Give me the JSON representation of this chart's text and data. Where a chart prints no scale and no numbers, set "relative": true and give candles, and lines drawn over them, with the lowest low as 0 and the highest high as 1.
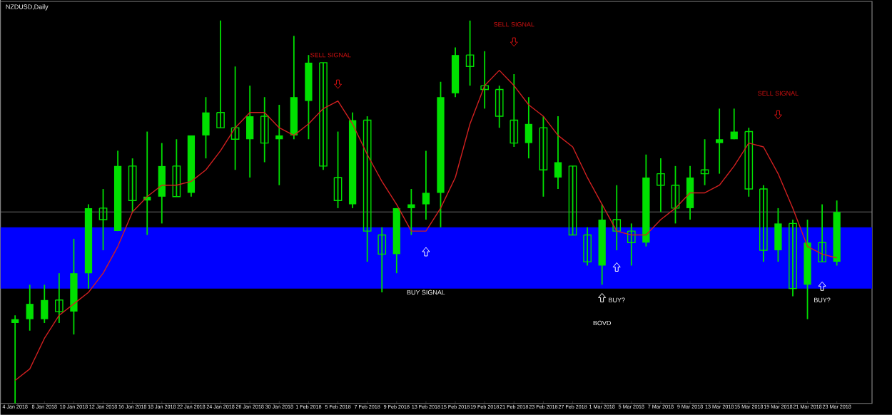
{
  "chart_data": {
    "type": "candlestick",
    "title": "NZDUSD,Daily",
    "relative": true,
    "color": "#00e000",
    "categories": [
      "4 Jan 2018",
      null,
      "8 Jan 2018",
      null,
      "10 Jan 2018",
      null,
      "12 Jan 2018",
      null,
      "16 Jan 2018",
      null,
      "18 Jan 2018",
      null,
      "22 Jan 2018",
      null,
      "24 Jan 2018",
      null,
      "26 Jan 2018",
      null,
      "30 Jan 2018",
      null,
      "1 Feb 2018",
      null,
      "5 Feb 2018",
      null,
      "7 Feb 2018",
      null,
      "9 Feb 2018",
      null,
      "13 Feb 2018",
      null,
      "15 Feb 2018",
      null,
      "19 Feb 2018",
      null,
      "21 Feb 2018",
      null,
      "23 Feb 2018",
      null,
      "27 Feb 2018",
      null,
      "1 Mar 2018",
      null,
      "5 Mar 2018",
      null,
      "7 Mar 2018",
      null,
      "9 Mar 2018",
      null,
      "13 Mar 2018",
      null,
      "15 Mar 2018",
      null,
      "19 Mar 2018",
      null,
      "21 Mar 2018",
      null,
      "23 Mar 2018"
    ],
    "ohlc": [
      [
        0.21,
        0.23,
        0,
        0.22
      ],
      [
        0.22,
        0.31,
        0.19,
        0.26
      ],
      [
        0.22,
        0.31,
        0.21,
        0.27
      ],
      [
        0.27,
        0.34,
        0.21,
        0.24
      ],
      [
        0.24,
        0.43,
        0.18,
        0.34
      ],
      [
        0.34,
        0.52,
        0.3,
        0.51
      ],
      [
        0.51,
        0.56,
        0.4,
        0.48
      ],
      [
        0.45,
        0.66,
        0.45,
        0.62
      ],
      [
        0.62,
        0.64,
        0.5,
        0.53
      ],
      [
        0.53,
        0.71,
        0.44,
        0.54
      ],
      [
        0.54,
        0.68,
        0.47,
        0.62
      ],
      [
        0.62,
        0.69,
        0.54,
        0.54
      ],
      [
        0.55,
        0.7,
        0.54,
        0.7
      ],
      [
        0.7,
        0.8,
        0.64,
        0.76
      ],
      [
        0.76,
        1.0,
        0.72,
        0.72
      ],
      [
        0.72,
        0.88,
        0.61,
        0.69
      ],
      [
        0.69,
        0.83,
        0.59,
        0.75
      ],
      [
        0.75,
        0.8,
        0.63,
        0.68
      ],
      [
        0.69,
        0.78,
        0.57,
        0.7
      ],
      [
        0.7,
        0.96,
        0.69,
        0.8
      ],
      [
        0.79,
        0.91,
        0.69,
        0.89
      ],
      [
        0.89,
        0.89,
        0.61,
        0.62
      ],
      [
        0.59,
        0.71,
        0.51,
        0.53
      ],
      [
        0.52,
        0.76,
        0.51,
        0.74
      ],
      [
        0.74,
        0.75,
        0.37,
        0.45
      ],
      [
        0.44,
        0.46,
        0.29,
        0.39
      ],
      [
        0.39,
        0.51,
        0.34,
        0.51
      ],
      [
        0.51,
        0.56,
        0.44,
        0.52
      ],
      [
        0.52,
        0.66,
        0.48,
        0.55
      ],
      [
        0.55,
        0.84,
        0.46,
        0.8
      ],
      [
        0.81,
        0.93,
        0.8,
        0.91
      ],
      [
        0.91,
        1.0,
        0.83,
        0.88
      ],
      [
        0.83,
        0.92,
        0.77,
        0.82
      ],
      [
        0.82,
        0.83,
        0.72,
        0.75
      ],
      [
        0.74,
        0.86,
        0.67,
        0.68
      ],
      [
        0.68,
        0.8,
        0.64,
        0.73
      ],
      [
        0.72,
        0.75,
        0.54,
        0.61
      ],
      [
        0.59,
        0.75,
        0.56,
        0.63
      ],
      [
        0.62,
        0.62,
        0.44,
        0.44
      ],
      [
        0.44,
        0.46,
        0.36,
        0.37
      ],
      [
        0.36,
        0.52,
        0.31,
        0.48
      ],
      [
        0.48,
        0.57,
        0.4,
        0.45
      ],
      [
        0.45,
        0.47,
        0.36,
        0.42
      ],
      [
        0.42,
        0.65,
        0.41,
        0.59
      ],
      [
        0.6,
        0.64,
        0.5,
        0.57
      ],
      [
        0.57,
        0.62,
        0.47,
        0.51
      ],
      [
        0.51,
        0.62,
        0.48,
        0.59
      ],
      [
        0.61,
        0.69,
        0.57,
        0.6
      ],
      [
        0.68,
        0.77,
        0.6,
        0.69
      ],
      [
        0.69,
        0.77,
        0.69,
        0.71
      ],
      [
        0.71,
        0.72,
        0.54,
        0.56
      ],
      [
        0.56,
        0.57,
        0.37,
        0.4
      ],
      [
        0.4,
        0.51,
        0.37,
        0.47
      ],
      [
        0.47,
        0.48,
        0.28,
        0.3
      ],
      [
        0.31,
        0.48,
        0.22,
        0.42
      ],
      [
        0.42,
        0.52,
        0.37,
        0.37
      ],
      [
        0.37,
        0.53,
        0.36,
        0.5
      ]
    ],
    "series": [
      {
        "type": "line",
        "color": "#d02020",
        "values": [
          0.06,
          0.09,
          0.17,
          0.23,
          0.26,
          0.29,
          0.34,
          0.41,
          0.5,
          0.54,
          0.57,
          0.57,
          0.58,
          0.61,
          0.66,
          0.72,
          0.76,
          0.76,
          0.72,
          0.7,
          0.73,
          0.77,
          0.79,
          0.73,
          0.65,
          0.58,
          0.52,
          0.45,
          0.45,
          0.51,
          0.59,
          0.73,
          0.83,
          0.87,
          0.83,
          0.78,
          0.75,
          0.7,
          0.67,
          0.59,
          0.52,
          0.45,
          0.44,
          0.44,
          0.48,
          0.51,
          0.55,
          0.55,
          0.57,
          0.62,
          0.68,
          0.67,
          0.6,
          0.51,
          0.41,
          0.39,
          0.38
        ]
      }
    ],
    "bands": [
      {
        "axis": "y",
        "from": 0.3,
        "to": 0.46,
        "color": "#0000ff"
      }
    ],
    "ref_lines": [
      {
        "axis": "y",
        "value": 0.5,
        "color": "#808080"
      }
    ],
    "annotations": [
      "SELL SIGNAL",
      "SELL SIGNAL",
      "SELL SIGNAL",
      "BUY SIGNAL",
      "BUY?",
      "BOVD",
      "BUY?"
    ]
  }
}
